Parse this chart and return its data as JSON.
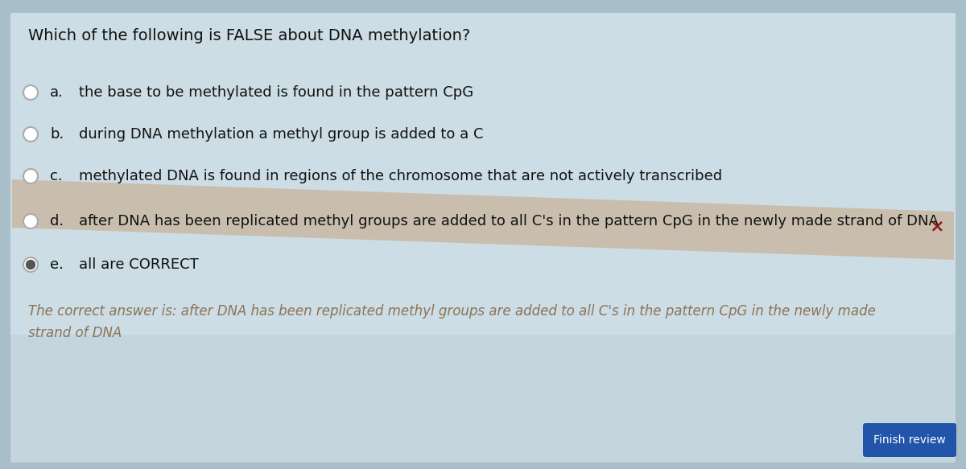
{
  "question": "Which of the following is FALSE about DNA methylation?",
  "options": [
    {
      "label": "a.",
      "text": "the base to be methylated is found in the pattern CpG",
      "radio_filled": false,
      "has_x": false
    },
    {
      "label": "b.",
      "text": "during DNA methylation a methyl group is added to a C",
      "radio_filled": false,
      "has_x": false
    },
    {
      "label": "c.",
      "text": "methylated DNA is found in regions of the chromosome that are not actively transcribed",
      "radio_filled": false,
      "has_x": false
    },
    {
      "label": "d.",
      "text": "after DNA has been replicated methyl groups are added to all C's in the pattern CpG in the newly made strand of DNA",
      "radio_filled": false,
      "has_x": true
    },
    {
      "label": "e.",
      "text": "all are CORRECT",
      "radio_filled": true,
      "has_x": false
    }
  ],
  "correct_line1": "The correct answer is: after DNA has been replicated methyl groups are added to all C's in the pattern CpG in the newly made",
  "correct_line2": "strand of DNA",
  "finish_button": "Finish review",
  "bg_outer": "#a8bec9",
  "bg_card": "#cddde5",
  "bg_answer_band": "#c9b9a5",
  "bg_lower": "#c5d5de",
  "finish_btn_color": "#2255aa",
  "question_font_size": 14,
  "option_font_size": 13,
  "answer_font_size": 12,
  "correct_answer_color": "#8b7355",
  "x_mark_color": "#8b1a1a",
  "radio_color": "#aaaaaa",
  "radio_fill_color": "#555555"
}
